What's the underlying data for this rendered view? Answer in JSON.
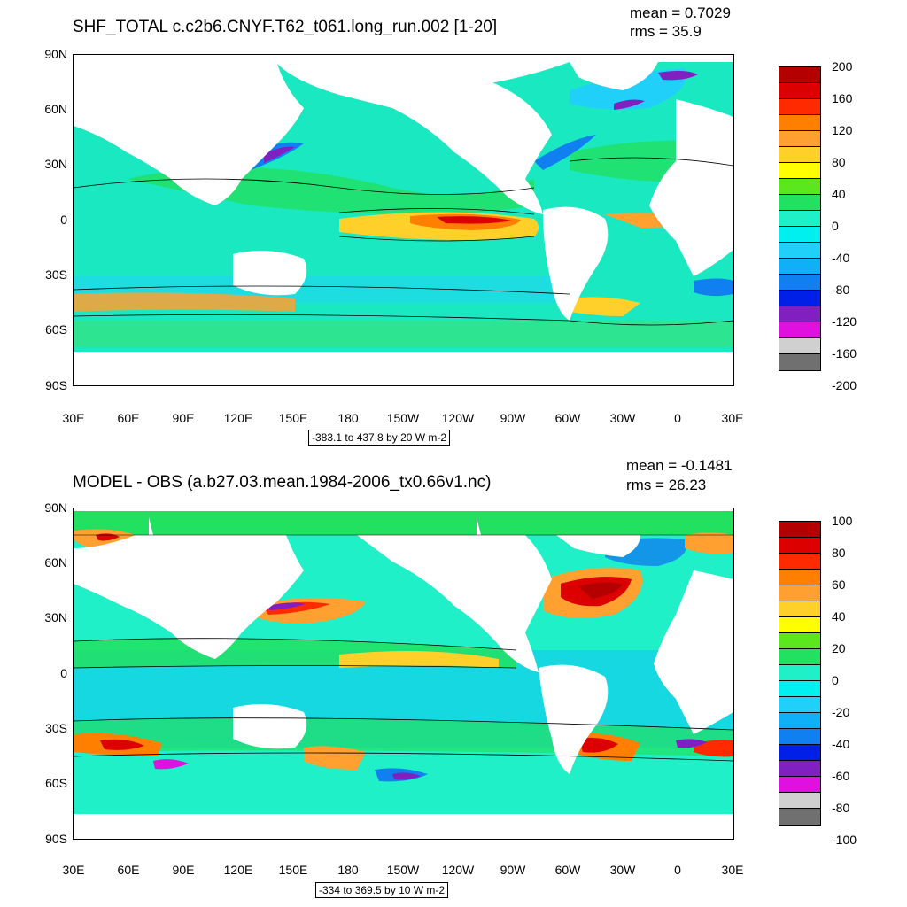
{
  "panels": [
    {
      "title": "SHF_TOTAL c.c2b6.CNYF.T62_t061.long_run.002 [1-20]",
      "mean_label": "mean = 0.7029",
      "rms_label": "rms = 35.9",
      "range_label": "-383.1 to 437.8 by 20 W m-2",
      "lat_labels": [
        "90N",
        "60N",
        "30N",
        "0",
        "30S",
        "60S",
        "90S"
      ],
      "lon_labels": [
        "30E",
        "60E",
        "90E",
        "120E",
        "150E",
        "180",
        "150W",
        "120W",
        "90W",
        "60W",
        "30W",
        "0",
        "30E"
      ],
      "colorbar_labels": [
        "200",
        "160",
        "120",
        "80",
        "40",
        "0",
        "-40",
        "-80",
        "-120",
        "-160",
        "-200"
      ]
    },
    {
      "title": "MODEL - OBS (a.b27.03.mean.1984-2006_tx0.66v1.nc)",
      "mean_label": "mean = -0.1481",
      "rms_label": "rms = 26.23",
      "range_label": "-334 to 369.5 by 10 W m-2",
      "lat_labels": [
        "90N",
        "60N",
        "30N",
        "0",
        "30S",
        "60S",
        "90S"
      ],
      "lon_labels": [
        "30E",
        "60E",
        "90E",
        "120E",
        "150E",
        "180",
        "150W",
        "120W",
        "90W",
        "60W",
        "30W",
        "0",
        "30E"
      ],
      "colorbar_labels": [
        "100",
        "80",
        "60",
        "40",
        "20",
        "0",
        "-20",
        "-40",
        "-60",
        "-80",
        "-100"
      ]
    }
  ],
  "colorbar_colors": [
    "#b50000",
    "#dc0000",
    "#ff2a00",
    "#ff7f00",
    "#ffa030",
    "#ffd02a",
    "#ffff00",
    "#5ce61e",
    "#22e060",
    "#20f0c8",
    "#00f0f0",
    "#20d0f8",
    "#10b0f8",
    "#1080f0",
    "#0020e8",
    "#8020c0",
    "#e010e0",
    "#d0d0d0",
    "#707070"
  ]
}
